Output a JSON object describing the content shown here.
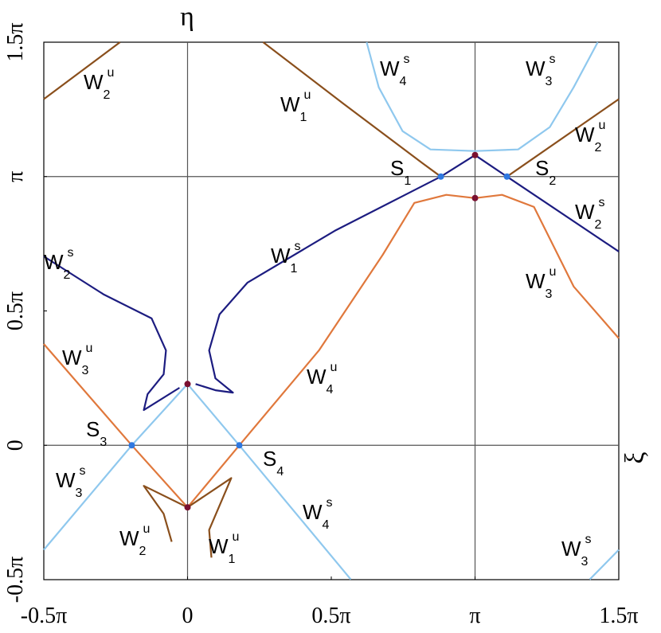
{
  "chart_data": {
    "type": "line",
    "xlabel": "ξ",
    "ylabel": "η",
    "xlim": [
      -0.5,
      1.5
    ],
    "ylim": [
      -0.5,
      1.5
    ],
    "xticks": [
      {
        "value": -0.5,
        "label": "-0.5π"
      },
      0,
      {
        "value": 0.5,
        "label": "0.5π"
      },
      {
        "value": 1,
        "label": "π"
      },
      {
        "value": 1.5,
        "label": "1.5π"
      }
    ],
    "yticks": [
      {
        "value": -0.5,
        "label": "-0.5π"
      },
      0,
      {
        "value": 0.5,
        "label": "0.5π"
      },
      {
        "value": 1,
        "label": "π"
      },
      {
        "value": 1.5,
        "label": "1.5π"
      }
    ],
    "grid_x": [
      0,
      1
    ],
    "grid_y": [
      0,
      1
    ],
    "series": [
      {
        "color": "#1c1c80",
        "x": [
          0.881,
          0.512,
          0.208,
          0.111,
          0.075,
          0.097,
          0.158,
          0.097,
          0.028
        ],
        "values": [
          1,
          0.798,
          0.605,
          0.487,
          0.353,
          0.249,
          0.196,
          0.205,
          0.228
        ]
      },
      {
        "color": "#1c1c80",
        "x": [
          -0.5,
          -0.291,
          -0.125,
          -0.075,
          -0.083,
          -0.139,
          -0.152,
          -0.028
        ],
        "values": [
          0.703,
          0.561,
          0.472,
          0.353,
          0.264,
          0.19,
          0.131,
          0.214
        ]
      },
      {
        "color": "#1c1c80",
        "x": [
          1.5,
          1.111,
          1,
          0.881
        ],
        "values": [
          0.721,
          1,
          1.08,
          1
        ]
      },
      {
        "color": "#8fc8ee",
        "x": [
          -0.5,
          -0.194,
          0,
          0.18,
          0.568
        ],
        "values": [
          -0.389,
          0,
          0.228,
          0,
          -0.499
        ]
      },
      {
        "color": "#8fc8ee",
        "x": [
          0.623,
          0.665,
          0.748,
          0.845,
          1
        ],
        "values": [
          1.5,
          1.332,
          1.169,
          1.101,
          1.095
        ]
      },
      {
        "color": "#8fc8ee",
        "x": [
          1.427,
          1.343,
          1.26,
          1.15,
          1
        ],
        "values": [
          1.5,
          1.332,
          1.184,
          1.101,
          1.095
        ]
      },
      {
        "color": "#8fc8ee",
        "x": [
          1.399,
          1.5
        ],
        "values": [
          -0.499,
          -0.389
        ]
      },
      {
        "color": "#e0783c",
        "x": [
          -0.5,
          -0.194,
          0
        ],
        "values": [
          0.377,
          0,
          -0.231
        ]
      },
      {
        "color": "#e0783c",
        "x": [
          0,
          0.18,
          0.457,
          0.679,
          0.789,
          0.9,
          1
        ],
        "values": [
          -0.231,
          0,
          0.353,
          0.709,
          0.902,
          0.932,
          0.92
        ]
      },
      {
        "color": "#e0783c",
        "x": [
          1.5,
          1.343,
          1.26,
          1.205,
          1.094,
          1
        ],
        "values": [
          0.398,
          0.591,
          0.769,
          0.887,
          0.932,
          0.92
        ]
      },
      {
        "color": "#8a4f1c",
        "x": [
          -0.5,
          -0.235
        ],
        "values": [
          1.288,
          1.5
        ]
      },
      {
        "color": "#8a4f1c",
        "x": [
          0.263,
          0.54,
          0.817,
          0.881
        ],
        "values": [
          1.5,
          1.273,
          1.05,
          1
        ]
      },
      {
        "color": "#8a4f1c",
        "x": [
          1.5,
          1.111
        ],
        "values": [
          1.288,
          1
        ]
      },
      {
        "color": "#8a4f1c",
        "x": [
          -0.055,
          -0.083,
          -0.152,
          0
        ],
        "values": [
          -0.359,
          -0.255,
          -0.151,
          -0.231
        ]
      },
      {
        "color": "#8a4f1c",
        "x": [
          0.083,
          0.075,
          0.152,
          0
        ],
        "values": [
          -0.418,
          -0.315,
          -0.122,
          -0.231
        ]
      }
    ],
    "markers": [
      {
        "color": "#2f78e0",
        "x": [
          0.881,
          1.111,
          -0.194,
          0.18
        ],
        "values": [
          1,
          1,
          0,
          0
        ]
      },
      {
        "color": "#7a1030",
        "x": [
          0,
          0,
          1,
          1
        ],
        "values": [
          0.228,
          -0.231,
          1.08,
          0.92
        ]
      }
    ],
    "annotations": [
      {
        "text": "W",
        "sub": "2",
        "sup": "u"
      },
      {
        "text": "W",
        "sub": "1",
        "sup": "u"
      },
      {
        "text": "W",
        "sub": "4",
        "sup": "s"
      },
      {
        "text": "W",
        "sub": "3",
        "sup": "s"
      },
      {
        "text": "W",
        "sub": "2",
        "sup": "u"
      },
      {
        "text": "S",
        "sub": "1"
      },
      {
        "text": "S",
        "sub": "2"
      },
      {
        "text": "W",
        "sub": "2",
        "sup": "s"
      },
      {
        "text": "W",
        "sub": "1",
        "sup": "s"
      },
      {
        "text": "W",
        "sub": "2",
        "sup": "s"
      },
      {
        "text": "W",
        "sub": "3",
        "sup": "u"
      },
      {
        "text": "W",
        "sub": "3",
        "sup": "u"
      },
      {
        "text": "W",
        "sub": "4",
        "sup": "u"
      },
      {
        "text": "S",
        "sub": "3"
      },
      {
        "text": "S",
        "sub": "4"
      },
      {
        "text": "W",
        "sub": "3",
        "sup": "s"
      },
      {
        "text": "W",
        "sub": "4",
        "sup": "s"
      },
      {
        "text": "W",
        "sub": "2",
        "sup": "u"
      },
      {
        "text": "W",
        "sub": "1",
        "sup": "u"
      },
      {
        "text": "W",
        "sub": "3",
        "sup": "s"
      }
    ]
  }
}
